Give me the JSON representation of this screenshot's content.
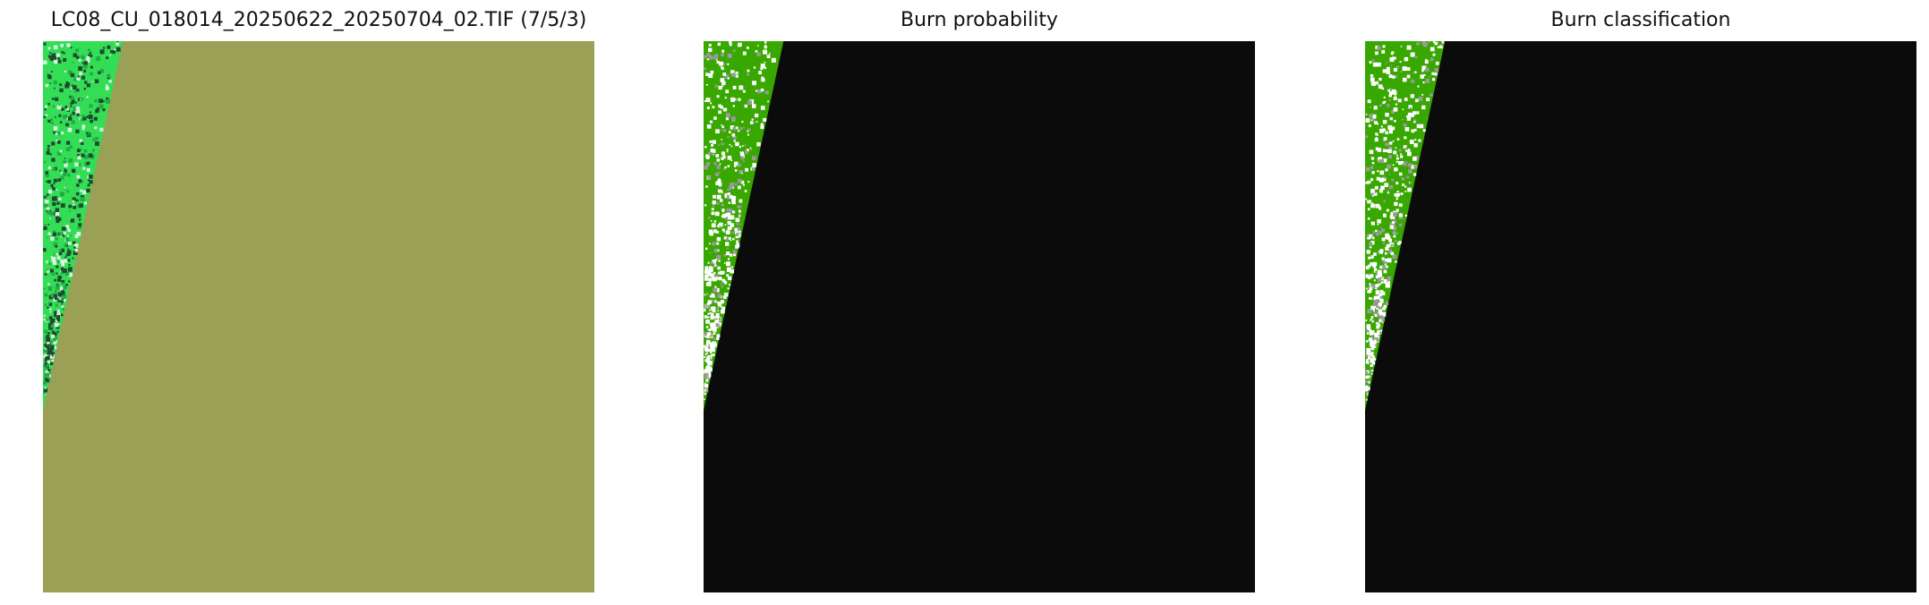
{
  "panels": [
    {
      "title": "LC08_CU_018014_20250622_20250704_02.TIF (7/5/3)",
      "type": "false-color-composite",
      "background_color": "#9aa055",
      "vegetation_color": "#33dd55"
    },
    {
      "title": "Burn probability",
      "type": "probability-map",
      "background_color": "#0b0b0b",
      "vegetation_color": "#38a800"
    },
    {
      "title": "Burn classification",
      "type": "classification-map",
      "background_color": "#0b0b0b",
      "vegetation_color": "#38a800"
    }
  ]
}
